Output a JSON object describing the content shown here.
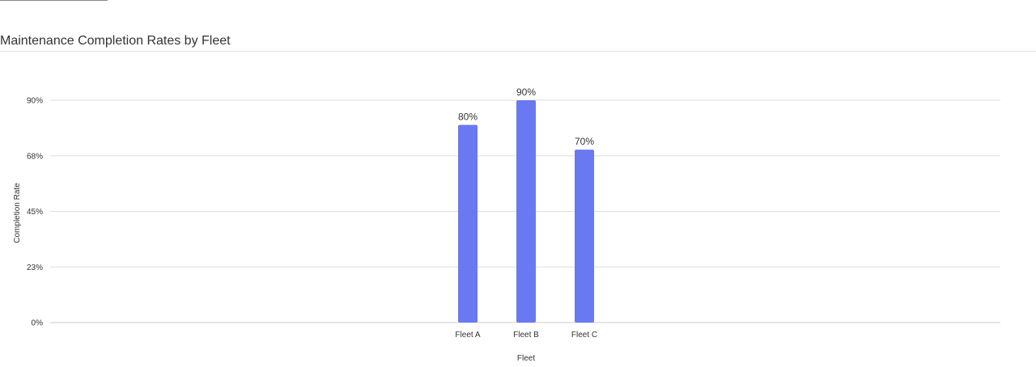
{
  "page": {
    "title": "Maintenance Completion Rates by Fleet"
  },
  "chart_data": {
    "type": "bar",
    "title": "Maintenance Completion Rates by Fleet",
    "categories": [
      "Fleet A",
      "Fleet B",
      "Fleet C"
    ],
    "values": [
      80,
      90,
      70
    ],
    "data_labels": [
      "80%",
      "90%",
      "70%"
    ],
    "xlabel": "Fleet",
    "ylabel": "Completion Rate",
    "ylim": [
      0,
      90
    ],
    "yticks": [
      0,
      22.5,
      45,
      67.5,
      90
    ],
    "ytick_labels": [
      "0%",
      "23%",
      "45%",
      "68%",
      "90%"
    ],
    "grid": true,
    "legend": "none",
    "bar_color": "#6879f2"
  }
}
